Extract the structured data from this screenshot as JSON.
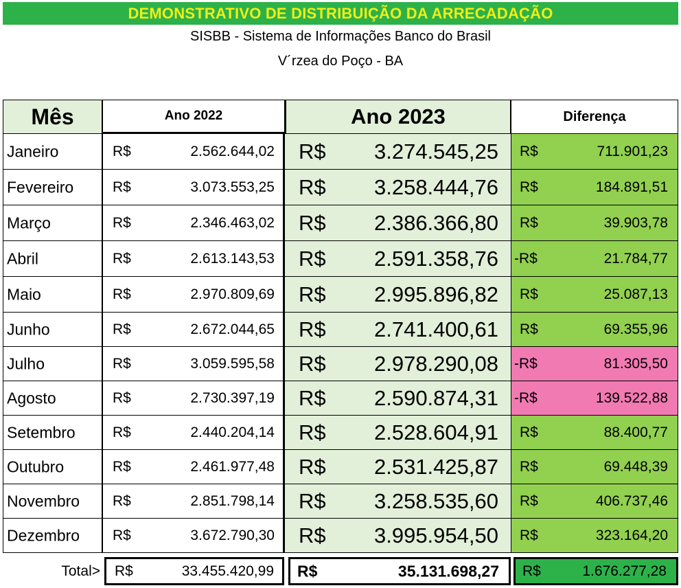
{
  "title": "DEMONSTRATIVO DE DISTRIBUIÇÃO DA ARRECADAÇÃO",
  "subtitle": "SISBB - Sistema de Informações Banco do Brasil",
  "location": "V´rzea do Poço  - BA",
  "colors": {
    "banner": "#2db24a",
    "banner_text": "#f2ee16",
    "header_fill": "#e2efd9",
    "positive_diff": "#92d050",
    "negative_diff": "#f27ab2",
    "total_diff": "#2db24a"
  },
  "table": {
    "headers": {
      "month": "Mês",
      "year2022": "Ano 2022",
      "year2023": "Ano 2023",
      "difference": "Diferença"
    },
    "currency": "R$",
    "rows": [
      {
        "month": "Janeiro",
        "v2022": "2.562.644,02",
        "v2023": "3.274.545,25",
        "diff_prefix": "R$",
        "diff": "711.901,23",
        "diff_status": "positive"
      },
      {
        "month": "Fevereiro",
        "v2022": "3.073.553,25",
        "v2023": "3.258.444,76",
        "diff_prefix": "R$",
        "diff": "184.891,51",
        "diff_status": "positive"
      },
      {
        "month": "Março",
        "v2022": "2.346.463,02",
        "v2023": "2.386.366,80",
        "diff_prefix": "R$",
        "diff": "39.903,78",
        "diff_status": "positive"
      },
      {
        "month": "Abril",
        "v2022": "2.613.143,53",
        "v2023": "2.591.358,76",
        "diff_prefix": "-R$",
        "diff": "21.784,77",
        "diff_status": "negative"
      },
      {
        "month": "Maio",
        "v2022": "2.970.809,69",
        "v2023": "2.995.896,82",
        "diff_prefix": "R$",
        "diff": "25.087,13",
        "diff_status": "positive"
      },
      {
        "month": "Junho",
        "v2022": "2.672.044,65",
        "v2023": "2.741.400,61",
        "diff_prefix": "R$",
        "diff": "69.355,96",
        "diff_status": "positive"
      },
      {
        "month": "Julho",
        "v2022": "3.059.595,58",
        "v2023": "2.978.290,08",
        "diff_prefix": "-R$",
        "diff": "81.305,50",
        "diff_status": "negative-highlight"
      },
      {
        "month": "Agosto",
        "v2022": "2.730.397,19",
        "v2023": "2.590.874,31",
        "diff_prefix": "-R$",
        "diff": "139.522,88",
        "diff_status": "negative-highlight"
      },
      {
        "month": "Setembro",
        "v2022": "2.440.204,14",
        "v2023": "2.528.604,91",
        "diff_prefix": "R$",
        "diff": "88.400,77",
        "diff_status": "positive"
      },
      {
        "month": "Outubro",
        "v2022": "2.461.977,48",
        "v2023": "2.531.425,87",
        "diff_prefix": "R$",
        "diff": "69.448,39",
        "diff_status": "positive"
      },
      {
        "month": "Novembro",
        "v2022": "2.851.798,14",
        "v2023": "3.258.535,60",
        "diff_prefix": "R$",
        "diff": "406.737,46",
        "diff_status": "positive"
      },
      {
        "month": "Dezembro",
        "v2022": "3.672.790,30",
        "v2023": "3.995.954,50",
        "diff_prefix": "R$",
        "diff": "323.164,20",
        "diff_status": "positive"
      }
    ],
    "total": {
      "label": "Total>",
      "v2022": "33.455.420,99",
      "v2023": "35.131.698,27",
      "diff_prefix": "R$",
      "diff": "1.676.277,28"
    }
  }
}
